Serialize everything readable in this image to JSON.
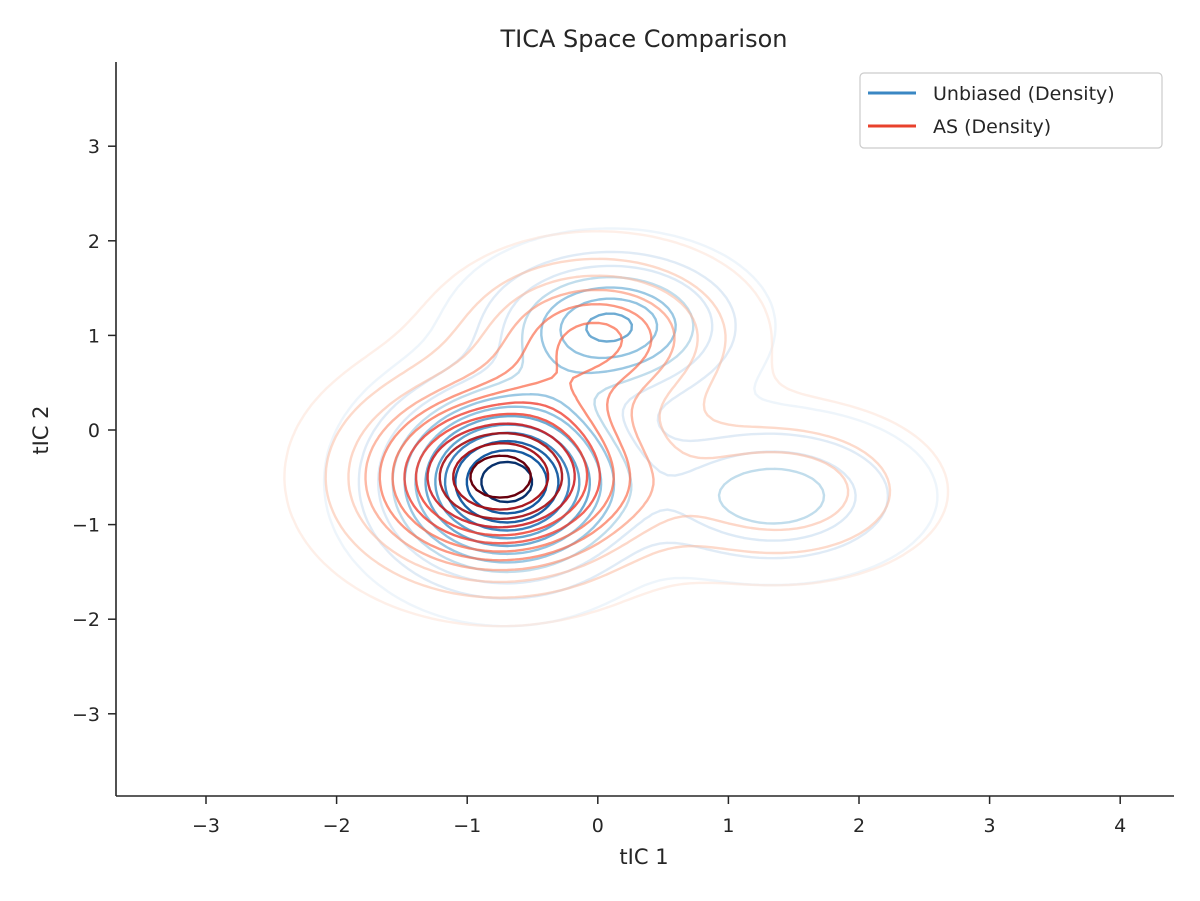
{
  "chart_data": {
    "type": "contour",
    "title": "TICA Space Comparison",
    "xlabel": "tIC 1",
    "ylabel": "tIC 2",
    "xlim": [
      -3.7,
      4.4
    ],
    "ylim": [
      -3.9,
      3.9
    ],
    "xticks": [
      -3,
      -2,
      -1,
      0,
      1,
      2,
      3,
      4
    ],
    "xtick_labels": [
      "−3",
      "−2",
      "−1",
      "0",
      "1",
      "2",
      "3",
      "4"
    ],
    "yticks": [
      3,
      2,
      1,
      0,
      -1,
      -2,
      -3
    ],
    "ytick_labels": [
      "3",
      "2",
      "1",
      "0",
      "−1",
      "−2",
      "−3"
    ],
    "grid": false,
    "legend_position": "top-right",
    "series": [
      {
        "name": "Unbiased (Density)",
        "color": "#3a87c3",
        "colormap": "Blues",
        "modes": [
          {
            "center": [
              -0.7,
              -0.55
            ],
            "spread": [
              0.55,
              0.6
            ],
            "weight": 1.0
          },
          {
            "center": [
              0.1,
              1.1
            ],
            "spread": [
              0.55,
              0.45
            ],
            "weight": 0.55
          },
          {
            "center": [
              1.35,
              -0.7
            ],
            "spread": [
              0.6,
              0.45
            ],
            "weight": 0.35
          }
        ]
      },
      {
        "name": "AS (Density)",
        "color": "#e8412c",
        "colormap": "Reds",
        "modes": [
          {
            "center": [
              -0.75,
              -0.5
            ],
            "spread": [
              0.65,
              0.62
            ],
            "weight": 1.0
          },
          {
            "center": [
              0.0,
              1.0
            ],
            "spread": [
              0.6,
              0.5
            ],
            "weight": 0.45
          },
          {
            "center": [
              1.4,
              -0.65
            ],
            "spread": [
              0.65,
              0.5
            ],
            "weight": 0.28
          }
        ]
      }
    ]
  }
}
